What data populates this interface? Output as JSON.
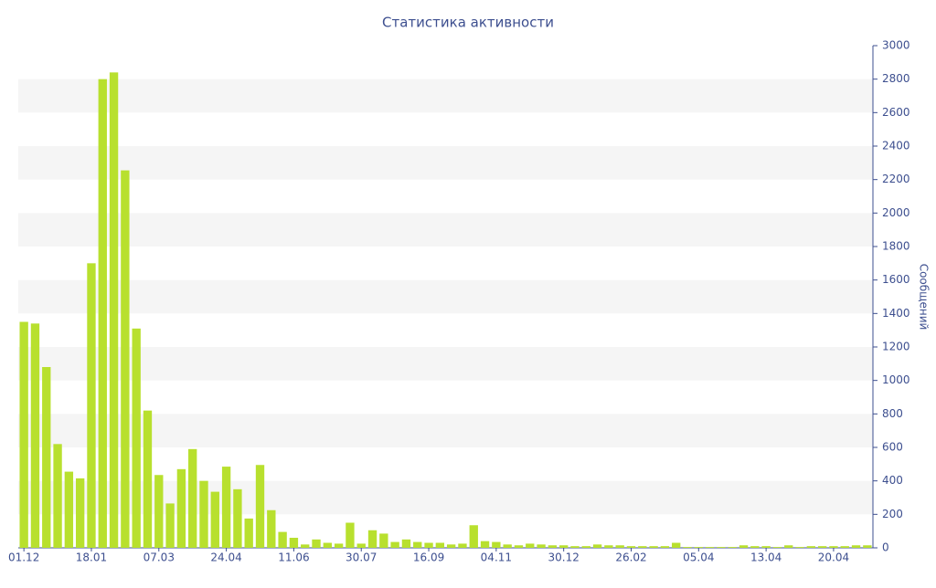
{
  "chart_data": {
    "type": "bar",
    "title": "Статистика активности",
    "y_label": "Сообщений",
    "categories": [
      "01.12",
      null,
      null,
      null,
      null,
      null,
      "18.01",
      null,
      null,
      null,
      null,
      null,
      "07.03",
      null,
      null,
      null,
      null,
      null,
      "24.04",
      null,
      null,
      null,
      null,
      null,
      "11.06",
      null,
      null,
      null,
      null,
      null,
      "30.07",
      null,
      null,
      null,
      null,
      null,
      "16.09",
      null,
      null,
      null,
      null,
      null,
      "04.11",
      null,
      null,
      null,
      null,
      null,
      "30.12",
      null,
      null,
      null,
      null,
      null,
      "26.02",
      null,
      null,
      null,
      null,
      null,
      "05.04",
      null,
      null,
      null,
      null,
      null,
      "13.04",
      null,
      null,
      null,
      null,
      null,
      "20.04",
      null,
      null,
      null
    ],
    "values": [
      1350,
      1340,
      1080,
      620,
      455,
      415,
      1700,
      2800,
      2840,
      2255,
      1310,
      820,
      435,
      265,
      470,
      590,
      400,
      335,
      485,
      350,
      175,
      495,
      225,
      95,
      60,
      20,
      50,
      30,
      25,
      150,
      25,
      105,
      85,
      35,
      50,
      35,
      30,
      30,
      20,
      25,
      135,
      40,
      35,
      20,
      15,
      25,
      20,
      15,
      15,
      10,
      10,
      20,
      15,
      15,
      10,
      10,
      10,
      10,
      30,
      5,
      5,
      5,
      5,
      5,
      15,
      10,
      10,
      5,
      15,
      5,
      10,
      10,
      10,
      10,
      15,
      15
    ],
    "color": "#b8e02e",
    "ylim": [
      0,
      3000
    ],
    "yticks": [
      0,
      200,
      400,
      600,
      800,
      1000,
      1200,
      1400,
      1600,
      1800,
      2000,
      2200,
      2400,
      2600,
      2800,
      3000
    ],
    "grid": "bands"
  }
}
